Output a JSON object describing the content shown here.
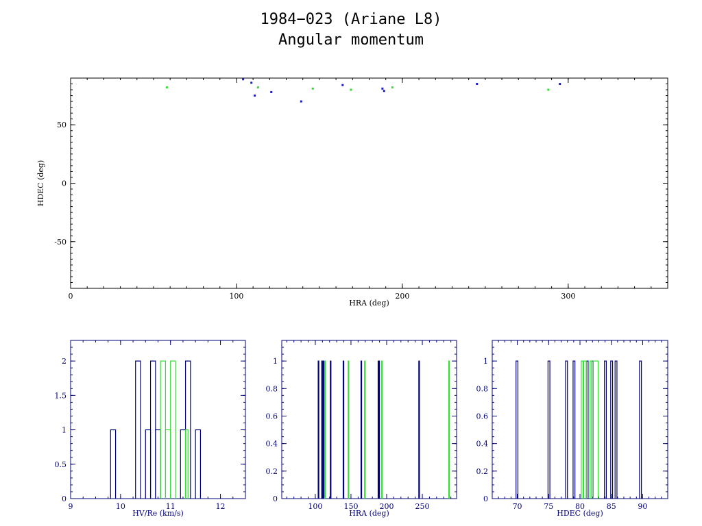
{
  "figure": {
    "title_line1": "1984−023 (Ariane L8)",
    "title_line2": "Angular momentum"
  },
  "colors": {
    "blue": "#1c1ccc",
    "green": "#33dd33",
    "navy": "#00007a",
    "black": "#000000"
  },
  "chart_data": [
    {
      "id": "scatter",
      "type": "scatter",
      "xlabel": "HRA (deg)",
      "ylabel": "HDEC (deg)",
      "xlim": [
        0,
        360
      ],
      "ylim": [
        -90,
        90
      ],
      "xticks": [
        0,
        100,
        200,
        300
      ],
      "yticks": [
        -50,
        0,
        50
      ],
      "series": [
        {
          "color": "blue",
          "points": [
            [
              104,
              89
            ],
            [
              109,
              86
            ],
            [
              111,
              75
            ],
            [
              121,
              78
            ],
            [
              139,
              70
            ],
            [
              164,
              84
            ],
            [
              188,
              81
            ],
            [
              189,
              79
            ],
            [
              245,
              85
            ],
            [
              295,
              85
            ]
          ]
        },
        {
          "color": "green",
          "points": [
            [
              58,
              82
            ],
            [
              113,
              82
            ],
            [
              146,
              81
            ],
            [
              169,
              80
            ],
            [
              194,
              82
            ],
            [
              288,
              80
            ]
          ]
        }
      ]
    },
    {
      "id": "hist-hv",
      "type": "bar",
      "xlabel": "HV/Re (km/s)",
      "xlim": [
        9,
        12.5
      ],
      "ylim": [
        0,
        2.3
      ],
      "xticks": [
        9,
        10,
        11,
        12
      ],
      "yticks": [
        0,
        0.5,
        1,
        1.5,
        2
      ],
      "ytick_labels": [
        "0",
        "0.5",
        "1",
        "1.5",
        "2"
      ],
      "series": [
        {
          "color": "navy",
          "bins": [
            [
              9.8,
              9.9,
              1
            ],
            [
              10.3,
              10.4,
              2
            ],
            [
              10.5,
              10.6,
              1
            ],
            [
              10.6,
              10.7,
              2
            ],
            [
              10.7,
              10.8,
              1
            ],
            [
              11.2,
              11.3,
              1
            ],
            [
              11.3,
              11.4,
              2
            ],
            [
              11.5,
              11.6,
              1
            ]
          ]
        },
        {
          "color": "green",
          "bins": [
            [
              10.8,
              10.9,
              2
            ],
            [
              10.9,
              11.0,
              1
            ],
            [
              11.0,
              11.1,
              2
            ],
            [
              11.3,
              11.35,
              1
            ]
          ]
        }
      ]
    },
    {
      "id": "hist-hra",
      "type": "bar",
      "xlabel": "HRA (deg)",
      "xlim": [
        53,
        298
      ],
      "ylim": [
        0,
        1.15
      ],
      "xticks": [
        100,
        150,
        200,
        250
      ],
      "yticks": [
        0,
        0.2,
        0.4,
        0.6,
        0.8,
        1
      ],
      "ytick_labels": [
        "0",
        "0.2",
        "0.4",
        "0.6",
        "0.8",
        "1"
      ],
      "series": [
        {
          "color": "navy",
          "bins": [
            [
              104,
              105,
              1
            ],
            [
              109,
              110,
              1
            ],
            [
              111,
              112,
              1
            ],
            [
              121,
              122,
              1
            ],
            [
              139,
              140,
              1
            ],
            [
              164,
              165,
              1
            ],
            [
              188,
              189,
              1
            ],
            [
              189,
              190,
              1
            ],
            [
              245,
              246,
              1
            ]
          ]
        },
        {
          "color": "green",
          "bins": [
            [
              113,
              114,
              1
            ],
            [
              146,
              147,
              1
            ],
            [
              169,
              170,
              1
            ],
            [
              193,
              194,
              1
            ],
            [
              287,
              288,
              1
            ]
          ]
        }
      ]
    },
    {
      "id": "hist-hdec",
      "type": "bar",
      "xlabel": "HDEC (deg)",
      "xlim": [
        66,
        94
      ],
      "ylim": [
        0,
        1.15
      ],
      "xticks": [
        70,
        75,
        80,
        85,
        90
      ],
      "yticks": [
        0,
        0.2,
        0.4,
        0.6,
        0.8,
        1
      ],
      "ytick_labels": [
        "0",
        "0.2",
        "0.4",
        "0.6",
        "0.8",
        "1"
      ],
      "series": [
        {
          "color": "navy",
          "bins": [
            [
              69.8,
              70.1,
              1
            ],
            [
              74.9,
              75.2,
              1
            ],
            [
              77.7,
              78.0,
              1
            ],
            [
              78.9,
              79.2,
              1
            ],
            [
              81.0,
              81.3,
              1
            ],
            [
              81.9,
              82.1,
              1
            ],
            [
              83.9,
              84.2,
              1
            ],
            [
              84.9,
              85.2,
              1
            ],
            [
              85.6,
              85.9,
              1
            ],
            [
              89.5,
              89.8,
              1
            ]
          ]
        },
        {
          "color": "green",
          "bins": [
            [
              80.2,
              80.5,
              1
            ],
            [
              80.6,
              81.0,
              1
            ],
            [
              81.6,
              81.9,
              1
            ],
            [
              82.1,
              82.9,
              1
            ]
          ]
        }
      ]
    }
  ]
}
